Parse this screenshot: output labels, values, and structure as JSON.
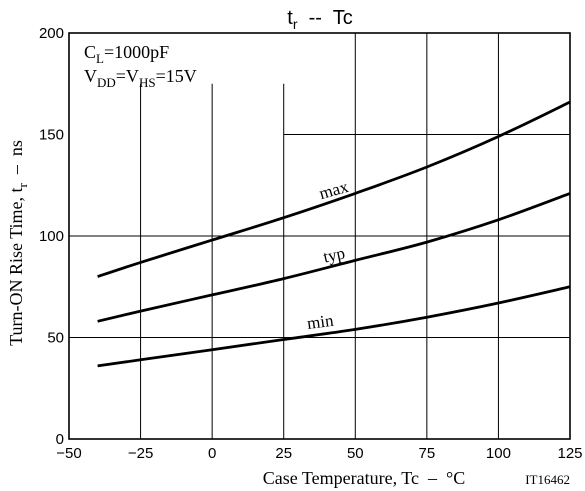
{
  "chart_data": {
    "type": "line",
    "title_main": "t",
    "title_sub": "r",
    "title_rest": "  --  Tc",
    "xlabel": "Case Temperature, Tc  –  °C",
    "ylabel": "Turn-ON Rise Time, t",
    "ylabel_sub": "r",
    "ylabel_suffix": "  –  ns",
    "xlim": [
      -50,
      125
    ],
    "ylim": [
      0,
      200
    ],
    "x_ticks": [
      -50,
      -25,
      0,
      25,
      50,
      75,
      100,
      125
    ],
    "y_ticks": [
      0,
      50,
      100,
      150,
      200
    ],
    "grid": true,
    "conditions": [
      {
        "main": "C",
        "sub": "L",
        "rest": "=1000pF"
      },
      {
        "main": "V",
        "sub": "DD",
        "mid": "=V",
        "sub2": "HS",
        "rest": "=15V"
      }
    ],
    "series": [
      {
        "name": "max",
        "x": [
          -40,
          -25,
          0,
          25,
          50,
          75,
          100,
          125
        ],
        "values": [
          80,
          87,
          98,
          109,
          121,
          134,
          149,
          166
        ]
      },
      {
        "name": "typ",
        "x": [
          -40,
          -25,
          0,
          25,
          50,
          75,
          100,
          125
        ],
        "values": [
          58,
          63,
          71,
          79,
          88,
          97,
          108,
          121
        ]
      },
      {
        "name": "min",
        "x": [
          -40,
          -25,
          0,
          25,
          50,
          75,
          100,
          125
        ],
        "values": [
          36,
          39,
          44,
          49,
          54,
          60,
          67,
          75
        ]
      }
    ],
    "series_label_positions": [
      {
        "name": "max",
        "x": 43,
        "y": 120,
        "angle": -16
      },
      {
        "name": "typ",
        "x": 43,
        "y": 88,
        "angle": -12
      },
      {
        "name": "min",
        "x": 38,
        "y": 55,
        "angle": -7
      }
    ],
    "figure_id": "IT16462"
  }
}
